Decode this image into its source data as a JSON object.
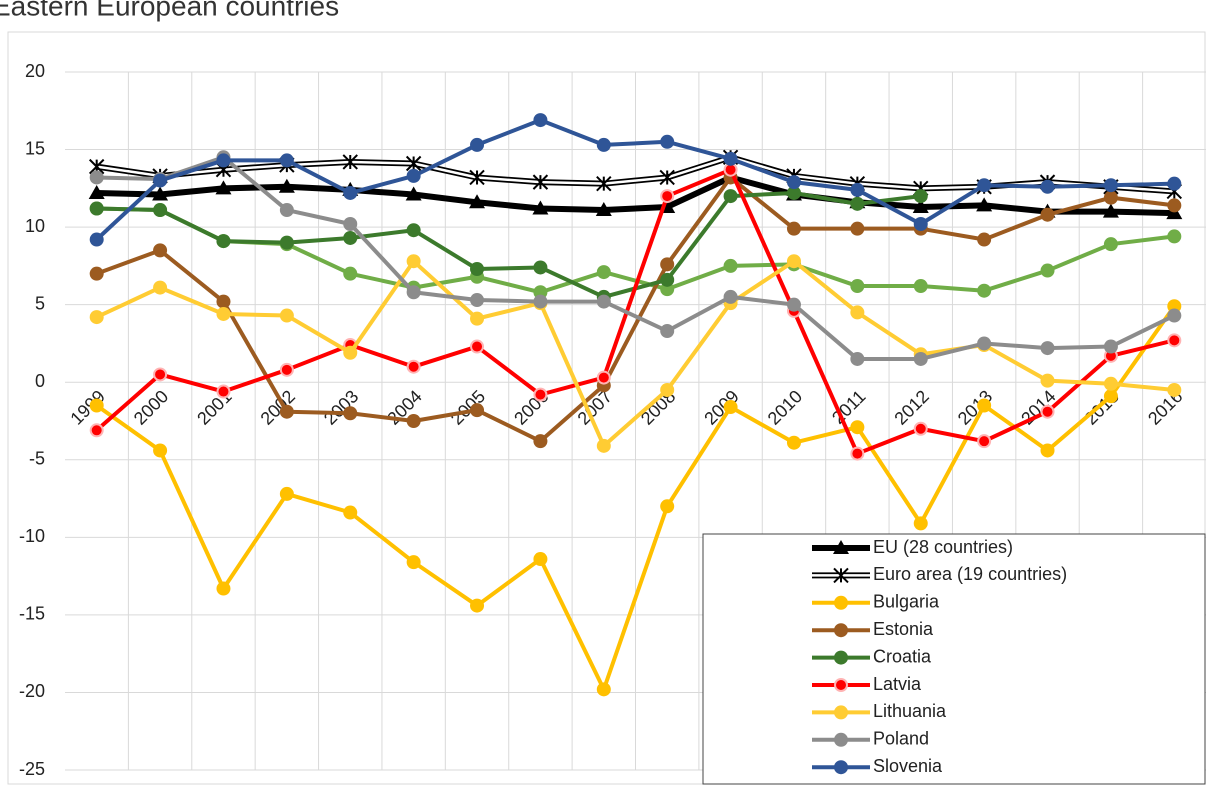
{
  "chart_data": {
    "type": "line",
    "title": "Eastern European countries",
    "categories": [
      "1999",
      "2000",
      "2001",
      "2002",
      "2003",
      "2004",
      "2005",
      "2006",
      "2007",
      "2008",
      "2009",
      "2010",
      "2011",
      "2012",
      "2013",
      "2014",
      "2015",
      "2016"
    ],
    "ylim": [
      -25,
      20
    ],
    "yticks": [
      -25,
      -20,
      -15,
      -10,
      -5,
      0,
      5,
      10,
      15,
      20
    ],
    "grid": true,
    "legend": "bottom-right",
    "series": [
      {
        "color": "#70ad47",
        "marker": "circle",
        "values": [
          11.2,
          11.1,
          9.1,
          8.9,
          7.0,
          6.1,
          6.8,
          5.8,
          7.1,
          6.0,
          7.5,
          7.6,
          6.2,
          6.2,
          5.9,
          7.2,
          8.9,
          9.4
        ]
      },
      {
        "name": "EU (28 countries)",
        "color": "#000000",
        "marker": "triangle",
        "values": [
          12.2,
          12.1,
          12.5,
          12.6,
          12.4,
          12.1,
          11.6,
          11.2,
          11.1,
          11.3,
          13.2,
          12.1,
          11.6,
          11.3,
          11.4,
          11.0,
          11.0,
          10.9
        ]
      },
      {
        "name": "Euro area (19 countries)",
        "color": "#000000",
        "marker": "star",
        "values": [
          13.9,
          13.3,
          13.7,
          14.0,
          14.2,
          14.1,
          13.2,
          12.9,
          12.8,
          13.2,
          14.5,
          13.3,
          12.8,
          12.5,
          12.6,
          12.9,
          12.6,
          12.3
        ]
      },
      {
        "name": "Bulgaria",
        "color": "#ffc000",
        "marker": "circle",
        "values": [
          -1.5,
          -4.4,
          -13.3,
          -7.2,
          -8.4,
          -11.6,
          -14.4,
          -11.4,
          -19.8,
          -8.0,
          -1.6,
          -3.9,
          -2.9,
          -9.1,
          -1.5,
          -4.4,
          -0.9,
          4.9
        ]
      },
      {
        "name": "Estonia",
        "color": "#9c5b20",
        "marker": "circle",
        "values": [
          7.0,
          8.5,
          5.2,
          -1.9,
          -2.0,
          -2.5,
          -1.8,
          -3.8,
          -0.2,
          7.6,
          13.2,
          9.9,
          9.9,
          9.9,
          9.2,
          10.8,
          11.9,
          11.4
        ]
      },
      {
        "name": "Croatia",
        "color": "#3c7a2c",
        "marker": "circle",
        "values": [
          11.2,
          11.1,
          9.1,
          9.0,
          9.3,
          9.8,
          7.3,
          7.4,
          5.5,
          6.6,
          12.0,
          12.2,
          11.5,
          12.0,
          null,
          null,
          null,
          null
        ]
      },
      {
        "name": "Latvia",
        "color": "#ff0000",
        "marker": "circle-light",
        "values": [
          -3.1,
          0.5,
          -0.6,
          0.8,
          2.4,
          1.0,
          2.3,
          -0.8,
          0.3,
          12.0,
          13.7,
          4.6,
          -4.6,
          -3.0,
          -3.8,
          -1.9,
          1.7,
          2.7
        ]
      },
      {
        "name": "Lithuania",
        "color": "#ffcc33",
        "marker": "circle",
        "values": [
          4.2,
          6.1,
          4.4,
          4.3,
          1.9,
          7.8,
          4.1,
          5.1,
          -4.1,
          -0.5,
          5.1,
          7.8,
          4.5,
          1.8,
          2.4,
          0.1,
          -0.1,
          -0.5
        ]
      },
      {
        "name": "Poland",
        "color": "#8c8c8c",
        "marker": "circle",
        "values": [
          13.2,
          13.1,
          14.5,
          11.1,
          10.2,
          5.8,
          5.3,
          5.2,
          5.2,
          3.3,
          5.5,
          5.0,
          1.5,
          1.5,
          2.5,
          2.2,
          2.3,
          4.3
        ]
      },
      {
        "name": "Slovenia",
        "color": "#2f5597",
        "marker": "circle",
        "values": [
          9.2,
          13.0,
          14.3,
          14.3,
          12.2,
          13.3,
          15.3,
          16.9,
          15.3,
          15.5,
          14.4,
          12.9,
          12.4,
          10.2,
          12.7,
          12.6,
          12.7,
          12.8
        ]
      }
    ]
  }
}
